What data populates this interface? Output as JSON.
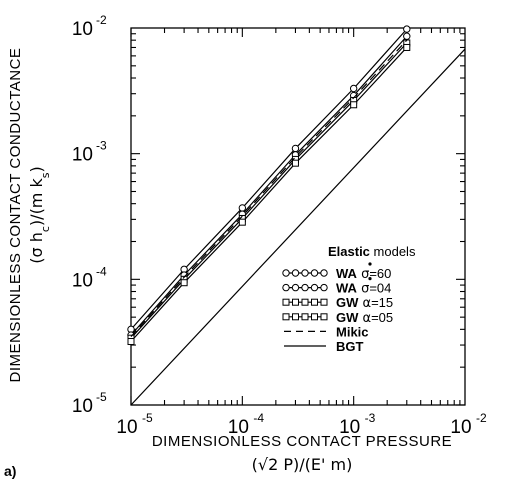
{
  "chart_data": {
    "type": "line",
    "panel_label": "a)",
    "xlabel": "DIMENSIONLESS CONTACT PRESSURE",
    "xlabel_formula": "(√2 P)/(E' m)",
    "ylabel": "DIMENSIONLESS CONTACT CONDUCTANCE",
    "ylabel_formula": "(σ hc)/(m ks)",
    "xscale": "log",
    "yscale": "log",
    "xlim": [
      1e-05,
      0.01
    ],
    "ylim": [
      1e-05,
      0.01
    ],
    "x_ticks": [
      {
        "value": 1e-05,
        "base": "10",
        "exp": "-5"
      },
      {
        "value": 0.0001,
        "base": "10",
        "exp": "-4"
      },
      {
        "value": 0.001,
        "base": "10",
        "exp": "-3"
      },
      {
        "value": 0.01,
        "base": "10",
        "exp": "-2"
      }
    ],
    "y_ticks": [
      {
        "value": 1e-05,
        "base": "10",
        "exp": "-5"
      },
      {
        "value": 0.0001,
        "base": "10",
        "exp": "-4"
      },
      {
        "value": 0.001,
        "base": "10",
        "exp": "-3"
      },
      {
        "value": 0.01,
        "base": "10",
        "exp": "-2"
      }
    ],
    "legend": {
      "title_bold": "Elastic",
      "title_rest": "models",
      "placement": "bottom-right"
    },
    "x": [
      1e-05,
      3e-05,
      0.0001,
      0.0003,
      0.001,
      0.003
    ],
    "series": [
      {
        "name": "WA σ*=60",
        "marker": "circle",
        "dash": "solid",
        "values": [
          4e-05,
          0.00012,
          0.00037,
          0.0011,
          0.0033,
          0.0098
        ]
      },
      {
        "name": "WA σ*=04",
        "marker": "circle",
        "dash": "solid",
        "values": [
          3.6e-05,
          0.000108,
          0.00033,
          0.00098,
          0.0029,
          0.0086
        ]
      },
      {
        "name": "GW α=15",
        "marker": "square",
        "dash": "solid",
        "values": [
          3.4e-05,
          0.0001,
          0.000305,
          0.0009,
          0.00265,
          0.0076
        ]
      },
      {
        "name": "GW α=05",
        "marker": "square",
        "dash": "solid",
        "values": [
          3.2e-05,
          9.4e-05,
          0.000285,
          0.00084,
          0.00245,
          0.007
        ]
      },
      {
        "name": "Mikic",
        "marker": "none",
        "dash": "dashed",
        "values": [
          3.5e-05,
          0.000104,
          0.000318,
          0.00094,
          0.00278,
          0.008
        ]
      },
      {
        "name": "BGT",
        "marker": "none",
        "dash": "solid",
        "start": [
          1e-05,
          1e-05
        ],
        "end": [
          0.01,
          0.0068
        ]
      }
    ],
    "legend_entries": [
      {
        "prefix": "WA",
        "sym": "σ",
        "post": "=60",
        "star": true
      },
      {
        "prefix": "WA",
        "sym": "σ",
        "post": "=04",
        "star": true
      },
      {
        "prefix": "GW",
        "sym": "α",
        "post": "=15",
        "star": false
      },
      {
        "prefix": "GW",
        "sym": "α",
        "post": "=05",
        "star": false
      },
      {
        "prefix": "Mikic",
        "sym": "",
        "post": "",
        "star": false
      },
      {
        "prefix": "BGT",
        "sym": "",
        "post": "",
        "star": false
      }
    ],
    "grid": false
  }
}
